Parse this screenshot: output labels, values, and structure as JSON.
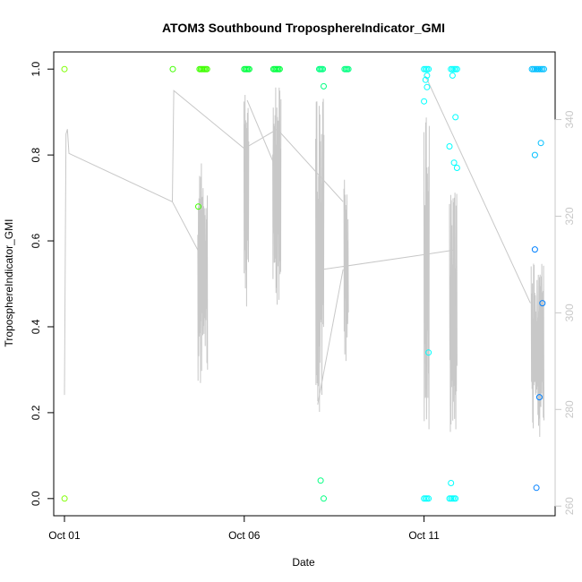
{
  "chart_data": {
    "type": "scatter",
    "title": "ATOM3 Southbound TroposphereIndicator_GMI",
    "xlabel": "Date",
    "ylabel": "TroposphereIndicator_GMI",
    "xlim": [
      "2016-09-30T16:50",
      "2016-10-14T15:30"
    ],
    "ylim": [
      -0.04,
      1.04
    ],
    "y2lim": [
      258,
      354
    ],
    "x_ticks": [
      {
        "value": "2016-10-01T00:00",
        "label": "Oct 01"
      },
      {
        "value": "2016-10-06T00:00",
        "label": "Oct 06"
      },
      {
        "value": "2016-10-11T00:00",
        "label": "Oct 11"
      }
    ],
    "y_ticks": [
      {
        "value": 0.0,
        "label": "0.0"
      },
      {
        "value": 0.2,
        "label": "0.2"
      },
      {
        "value": 0.4,
        "label": "0.4"
      },
      {
        "value": 0.6,
        "label": "0.6"
      },
      {
        "value": 0.8,
        "label": "0.8"
      },
      {
        "value": 1.0,
        "label": "1.0"
      }
    ],
    "y2_ticks": [
      {
        "value": 260,
        "label": "260"
      },
      {
        "value": 280,
        "label": "280"
      },
      {
        "value": 300,
        "label": "300"
      },
      {
        "value": 320,
        "label": "320"
      },
      {
        "value": 340,
        "label": "340"
      }
    ],
    "grid": false,
    "series": [
      {
        "kind": "points",
        "axis": "left",
        "colors": [
          "#7fff00",
          "#40ff00",
          "#00ff40",
          "#00ff80",
          "#00ffbf",
          "#00ffff",
          "#00bfff",
          "#0080ff"
        ],
        "points": [
          [
            "2016-10-01T00:00",
            1.0,
            0
          ],
          [
            "2016-10-01T00:05",
            0.0,
            0
          ],
          [
            "2016-10-04T00:20",
            1.0,
            1
          ],
          [
            "2016-10-04T17:20",
            0.68,
            1
          ],
          [
            "2016-10-04T18:10",
            1.0,
            1
          ],
          [
            "2016-10-04T19:00",
            1.0,
            1
          ],
          [
            "2016-10-04T19:50",
            1.0,
            1
          ],
          [
            "2016-10-04T20:40",
            1.0,
            1
          ],
          [
            "2016-10-04T21:30",
            1.0,
            1
          ],
          [
            "2016-10-04T22:20",
            1.0,
            1
          ],
          [
            "2016-10-04T23:10",
            1.0,
            1
          ],
          [
            "2016-10-06T00:00",
            1.0,
            2
          ],
          [
            "2016-10-06T00:50",
            1.0,
            2
          ],
          [
            "2016-10-06T01:40",
            1.0,
            2
          ],
          [
            "2016-10-06T02:30",
            1.0,
            2
          ],
          [
            "2016-10-06T03:20",
            1.0,
            2
          ],
          [
            "2016-10-06T19:30",
            1.0,
            2
          ],
          [
            "2016-10-06T20:20",
            1.0,
            2
          ],
          [
            "2016-10-06T21:10",
            1.0,
            2
          ],
          [
            "2016-10-06T22:00",
            1.0,
            2
          ],
          [
            "2016-10-06T22:50",
            1.0,
            2
          ],
          [
            "2016-10-06T23:40",
            1.0,
            2
          ],
          [
            "2016-10-08T02:00",
            1.0,
            3
          ],
          [
            "2016-10-08T02:50",
            1.0,
            3
          ],
          [
            "2016-10-08T03:40",
            1.0,
            3
          ],
          [
            "2016-10-08T04:30",
            1.0,
            3
          ],
          [
            "2016-10-08T03:00",
            0.042,
            3
          ],
          [
            "2016-10-08T05:00",
            0.0,
            3
          ],
          [
            "2016-10-08T05:00",
            0.96,
            3
          ],
          [
            "2016-10-08T19:00",
            1.0,
            3
          ],
          [
            "2016-10-08T19:50",
            1.0,
            3
          ],
          [
            "2016-10-08T20:40",
            1.0,
            3
          ],
          [
            "2016-10-08T21:30",
            1.0,
            3
          ],
          [
            "2016-10-11T00:00",
            1.0,
            5
          ],
          [
            "2016-10-11T01:00",
            1.0,
            5
          ],
          [
            "2016-10-11T02:00",
            1.0,
            5
          ],
          [
            "2016-10-11T03:00",
            1.0,
            5
          ],
          [
            "2016-10-11T00:00",
            0.925,
            5
          ],
          [
            "2016-10-11T01:00",
            0.975,
            5
          ],
          [
            "2016-10-11T02:00",
            0.985,
            5
          ],
          [
            "2016-10-11T02:00",
            0.958,
            5
          ],
          [
            "2016-10-11T00:00",
            0.0,
            5
          ],
          [
            "2016-10-11T01:00",
            0.0,
            5
          ],
          [
            "2016-10-11T02:00",
            0.0,
            5
          ],
          [
            "2016-10-11T03:00",
            0.0,
            5
          ],
          [
            "2016-10-11T03:00",
            0.34,
            5
          ],
          [
            "2016-10-11T18:00",
            1.0,
            5
          ],
          [
            "2016-10-11T19:00",
            1.0,
            5
          ],
          [
            "2016-10-11T20:00",
            1.0,
            5
          ],
          [
            "2016-10-11T21:00",
            1.0,
            5
          ],
          [
            "2016-10-11T22:00",
            1.0,
            5
          ],
          [
            "2016-10-11T19:00",
            0.985,
            5
          ],
          [
            "2016-10-11T21:00",
            0.888,
            5
          ],
          [
            "2016-10-11T17:00",
            0.82,
            5
          ],
          [
            "2016-10-11T20:00",
            0.782,
            5
          ],
          [
            "2016-10-11T22:00",
            0.77,
            5
          ],
          [
            "2016-10-11T17:00",
            0.0,
            5
          ],
          [
            "2016-10-11T18:00",
            0.0,
            5
          ],
          [
            "2016-10-11T19:00",
            0.0,
            5
          ],
          [
            "2016-10-11T20:00",
            0.0,
            5
          ],
          [
            "2016-10-11T21:00",
            0.0,
            5
          ],
          [
            "2016-10-11T18:00",
            0.036,
            5
          ],
          [
            "2016-10-14T00:00",
            1.0,
            6
          ],
          [
            "2016-10-14T01:00",
            1.0,
            6
          ],
          [
            "2016-10-14T02:00",
            1.0,
            6
          ],
          [
            "2016-10-14T03:00",
            1.0,
            6
          ],
          [
            "2016-10-14T04:00",
            1.0,
            6
          ],
          [
            "2016-10-14T05:00",
            1.0,
            6
          ],
          [
            "2016-10-14T06:00",
            1.0,
            6
          ],
          [
            "2016-10-14T07:00",
            1.0,
            6
          ],
          [
            "2016-10-14T08:00",
            1.0,
            6
          ],
          [
            "2016-10-14T02:00",
            0.8,
            6
          ],
          [
            "2016-10-14T06:00",
            0.828,
            6
          ],
          [
            "2016-10-14T02:00",
            0.58,
            7
          ],
          [
            "2016-10-14T07:00",
            0.455,
            7
          ],
          [
            "2016-10-14T05:00",
            0.236,
            7
          ],
          [
            "2016-10-14T03:00",
            0.025,
            7
          ]
        ]
      },
      {
        "kind": "line",
        "axis": "right",
        "color": "#c8c8c8",
        "segments": [
          [
            [
              "2016-10-01T00:00",
              283
            ],
            [
              "2016-10-01T01:00",
              337
            ],
            [
              "2016-10-01T02:00",
              338
            ],
            [
              "2016-10-01T03:00",
              333
            ],
            [
              "2016-10-04T00:00",
              323
            ],
            [
              "2016-10-04T01:00",
              346
            ],
            [
              "2016-10-06T00:00",
              334
            ],
            [
              "2016-10-06T22:00",
              338
            ],
            [
              "2016-10-08T18:00",
              323
            ]
          ],
          [
            [
              "2016-10-04T00:00",
              323
            ],
            [
              "2016-10-04T17:00",
              313
            ],
            [
              "2016-10-04T20:00",
              302
            ]
          ],
          [
            [
              "2016-10-06T02:00",
              344
            ],
            [
              "2016-10-06T21:00",
              330
            ]
          ],
          [
            [
              "2016-10-08T05:00",
              309
            ],
            [
              "2016-10-10T23:00",
              312
            ],
            [
              "2016-10-11T20:00",
              313
            ]
          ],
          [
            [
              "2016-10-08T01:00",
              281
            ],
            [
              "2016-10-08T18:00",
              309
            ]
          ],
          [
            [
              "2016-10-11T01:00",
              349
            ],
            [
              "2016-10-13T23:00",
              302
            ]
          ]
        ],
        "bursts": [
          {
            "start": "2016-10-04T17:00",
            "end": "2016-10-04T23:30",
            "min": 285,
            "max": 331
          },
          {
            "start": "2016-10-05T23:45",
            "end": "2016-10-06T03:00",
            "min": 301,
            "max": 348
          },
          {
            "start": "2016-10-06T19:00",
            "end": "2016-10-07T00:30",
            "min": 301,
            "max": 348
          },
          {
            "start": "2016-10-07T23:40",
            "end": "2016-10-08T05:10",
            "min": 278,
            "max": 346
          },
          {
            "start": "2016-10-08T18:30",
            "end": "2016-10-08T21:30",
            "min": 290,
            "max": 328
          },
          {
            "start": "2016-10-10T23:55",
            "end": "2016-10-11T03:30",
            "min": 275,
            "max": 341
          },
          {
            "start": "2016-10-11T17:00",
            "end": "2016-10-11T22:00",
            "min": 272,
            "max": 326
          },
          {
            "start": "2016-10-13T23:30",
            "end": "2016-10-14T08:00",
            "min": 274,
            "max": 311
          }
        ]
      }
    ]
  }
}
